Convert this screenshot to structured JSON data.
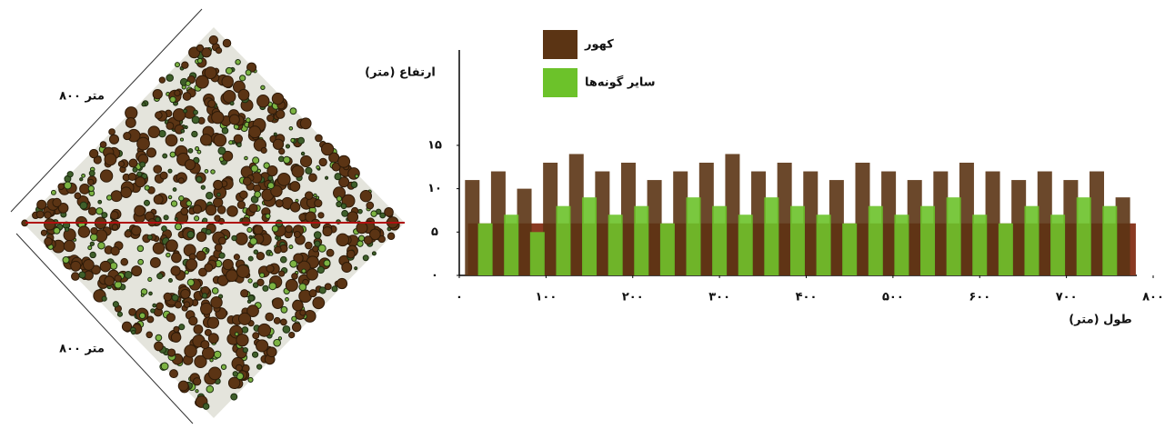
{
  "stand_map": {
    "side_labels": [
      "۸۰۰ متر",
      "۸۰۰ متر"
    ]
  },
  "chart_data": {
    "type": "profile",
    "x_label": "طول (متر)",
    "y_label": "ارتفاع (متر)",
    "xlim": [
      0,
      800
    ],
    "ylim": [
      0,
      26
    ],
    "xticks": [
      {
        "value": 0,
        "label": "۰"
      },
      {
        "value": 100,
        "label": "۱۰۰"
      },
      {
        "value": 200,
        "label": "۲۰۰"
      },
      {
        "value": 300,
        "label": "۳۰۰"
      },
      {
        "value": 400,
        "label": "۴۰۰"
      },
      {
        "value": 500,
        "label": "۵۰۰"
      },
      {
        "value": 600,
        "label": "۶۰۰"
      },
      {
        "value": 700,
        "label": "۷۰۰"
      },
      {
        "value": 800,
        "label": "۸۰۰"
      }
    ],
    "yticks": [
      {
        "value": 0,
        "label": "۰"
      },
      {
        "value": 5,
        "label": "۵"
      },
      {
        "value": 10,
        "label": "۱۰"
      },
      {
        "value": 15,
        "label": "۱۵"
      }
    ],
    "series": [
      {
        "name": "کهور",
        "color": "#5b3414",
        "x": [
          15,
          45,
          75,
          105,
          135,
          165,
          195,
          225,
          255,
          285,
          315,
          345,
          375,
          405,
          435,
          465,
          495,
          525,
          555,
          585,
          615,
          645,
          675,
          705,
          735,
          765
        ],
        "values": [
          11,
          12,
          10,
          13,
          14,
          12,
          13,
          11,
          12,
          13,
          14,
          12,
          13,
          12,
          11,
          13,
          12,
          11,
          12,
          13,
          12,
          11,
          12,
          11,
          12,
          9
        ]
      },
      {
        "name": "سایر گونه‌ها",
        "color": "#6cc22a",
        "x": [
          30,
          60,
          90,
          120,
          150,
          180,
          210,
          240,
          270,
          300,
          330,
          360,
          390,
          420,
          450,
          480,
          510,
          540,
          570,
          600,
          630,
          660,
          690,
          720,
          750
        ],
        "values": [
          6,
          7,
          5,
          8,
          9,
          7,
          8,
          6,
          9,
          8,
          7,
          9,
          8,
          7,
          6,
          8,
          7,
          8,
          9,
          7,
          6,
          8,
          7,
          9,
          8
        ]
      }
    ]
  }
}
